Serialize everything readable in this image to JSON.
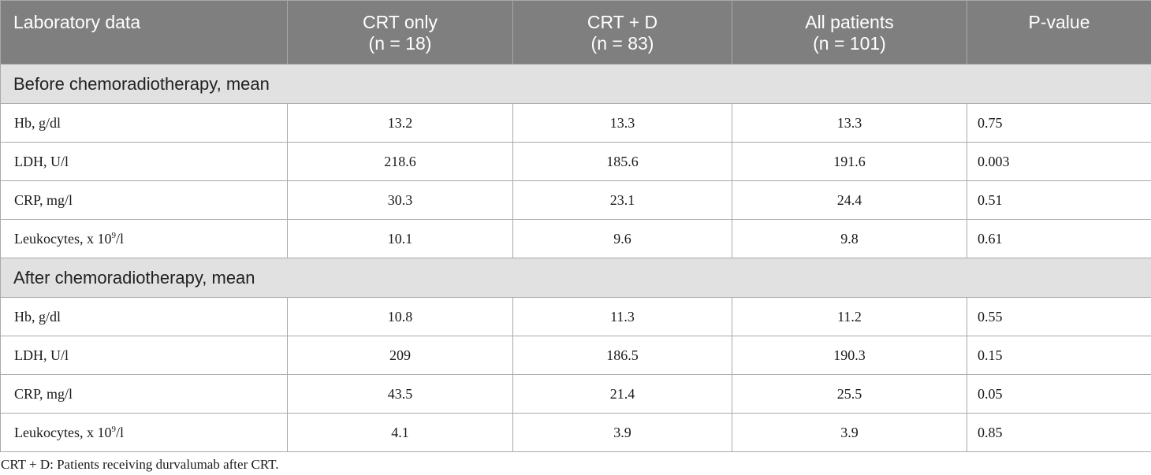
{
  "header": {
    "col0": "Laboratory data",
    "col1": [
      "CRT only",
      "(n = 18)"
    ],
    "col2": [
      "CRT + D",
      "(n = 83)"
    ],
    "col3": [
      "All patients",
      "(n = 101)"
    ],
    "col4": "P-value"
  },
  "sections": [
    {
      "title": "Before chemoradiotherapy, mean",
      "rows": [
        {
          "label": "Hb, g/dl",
          "crt": "13.2",
          "crtd": "13.3",
          "all": "13.3",
          "p": "0.75"
        },
        {
          "label": "LDH, U/l",
          "crt": "218.6",
          "crtd": "185.6",
          "all": "191.6",
          "p": "0.003"
        },
        {
          "label": "CRP, mg/l",
          "crt": "30.3",
          "crtd": "23.1",
          "all": "24.4",
          "p": "0.51"
        },
        {
          "label_pre": "Leukocytes, x 10",
          "label_sup": "9",
          "label_post": "/l",
          "crt": "10.1",
          "crtd": "9.6",
          "all": "9.8",
          "p": "0.61"
        }
      ]
    },
    {
      "title": "After chemoradiotherapy, mean",
      "rows": [
        {
          "label": "Hb, g/dl",
          "crt": "10.8",
          "crtd": "11.3",
          "all": "11.2",
          "p": "0.55"
        },
        {
          "label": "LDH, U/l",
          "crt": "209",
          "crtd": "186.5",
          "all": "190.3",
          "p": "0.15"
        },
        {
          "label": "CRP, mg/l",
          "crt": "43.5",
          "crtd": "21.4",
          "all": "25.5",
          "p": "0.05"
        },
        {
          "label_pre": "Leukocytes, x 10",
          "label_sup": "9",
          "label_post": "/l",
          "crt": "4.1",
          "crtd": "3.9",
          "all": "3.9",
          "p": "0.85"
        }
      ]
    }
  ],
  "footnote": "CRT + D: Patients receiving durvalumab after CRT.",
  "colors": {
    "header_bg": "#7f7f7f",
    "section_bg": "#e1e1e1",
    "border": "#a9a9a9"
  }
}
